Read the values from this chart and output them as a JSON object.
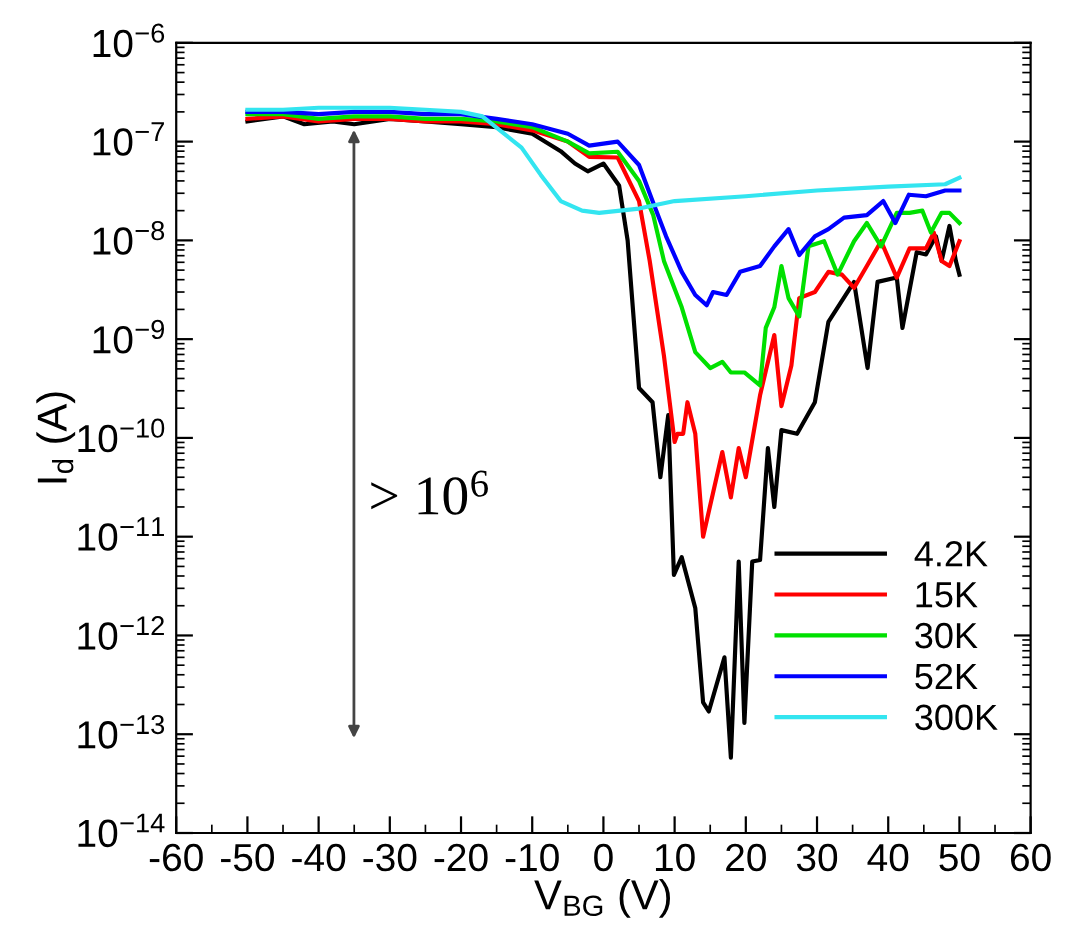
{
  "chart_data": {
    "type": "line",
    "xlabel": "V$_{BG}$ (V)",
    "ylabel": "I$_{d}$ (A)",
    "log": "y",
    "xlim": [
      -60,
      60
    ],
    "xticks": [
      -60,
      -50,
      -40,
      -30,
      -20,
      -10,
      0,
      10,
      20,
      30,
      40,
      50,
      60
    ],
    "ylim": [
      1e-14,
      1e-06
    ],
    "yticks": [
      {
        "value": 1e-14,
        "label": "10$^{−14}$"
      },
      {
        "value": 1e-13,
        "label": "10$^{−13}$"
      },
      {
        "value": 1e-12,
        "label": "10$^{−12}$"
      },
      {
        "value": 1e-11,
        "label": "10$^{−11}$"
      },
      {
        "value": 1e-10,
        "label": "10$^{−10}$"
      },
      {
        "value": 1e-09,
        "label": "10$^{−9}$"
      },
      {
        "value": 1e-08,
        "label": "10$^{−8}$"
      },
      {
        "value": 1e-07,
        "label": "10$^{−7}$"
      },
      {
        "value": 1e-06,
        "label": "10$^{−6}$"
      }
    ],
    "grid": false,
    "legend": "bottom right",
    "line_style": "solid",
    "marker": "none",
    "annotations": [
      "> 10$^{6}$"
    ],
    "series": [
      {
        "name": "4.2K",
        "color": "#000000",
        "x": [
          -50,
          -45,
          -42,
          -38,
          -35,
          -30,
          -25,
          -20,
          -15,
          -10,
          -6,
          -4,
          -2.2,
          0,
          2.2,
          3.4,
          5,
          6.9,
          8,
          9.1,
          9.9,
          11,
          12.9,
          14,
          14.8,
          17,
          17.9,
          19,
          19.8,
          20.9,
          22,
          23.1,
          24,
          25,
          27.2,
          29.7,
          31.6,
          35.2,
          37.1,
          38.5,
          41.2,
          42,
          44,
          45.3,
          46.7,
          47.5,
          48.6,
          49.5,
          50
        ],
        "values": [
          1.6e-07,
          1.8e-07,
          1.5e-07,
          1.6e-07,
          1.5e-07,
          1.7e-07,
          1.6e-07,
          1.5e-07,
          1.4e-07,
          1.2e-07,
          8e-08,
          6e-08,
          5e-08,
          6e-08,
          3.6e-08,
          1e-08,
          3.2e-10,
          2.3e-10,
          4e-11,
          1.7e-10,
          4.1e-12,
          6.2e-12,
          1.9e-12,
          2.1e-13,
          1.7e-13,
          6e-13,
          5.8e-14,
          5.6e-12,
          1.3e-13,
          5.6e-12,
          5.8e-12,
          7.9e-11,
          2e-11,
          1.2e-10,
          1.1e-10,
          2.3e-10,
          1.5e-09,
          3.8e-09,
          5.1e-10,
          3.8e-09,
          4.2e-09,
          1.3e-09,
          7.6e-09,
          7.2e-09,
          1.1e-08,
          6.2e-09,
          1.4e-08,
          6.2e-09,
          4.5e-09
        ]
      },
      {
        "name": "15K",
        "color": "#ff0000",
        "x": [
          -50,
          -45,
          -40,
          -35,
          -30,
          -25,
          -20,
          -15,
          -10,
          -5,
          -2,
          2,
          5,
          6.5,
          8.5,
          10,
          10.4,
          11.2,
          11.8,
          12.9,
          14,
          16.7,
          17.9,
          19,
          20,
          22,
          24,
          25,
          26.4,
          27.5,
          29.7,
          31.6,
          33.5,
          35.2,
          37,
          39,
          41.2,
          43,
          45.3,
          46.4,
          47.5,
          48.6,
          50
        ],
        "values": [
          1.7e-07,
          1.8e-07,
          1.6e-07,
          1.7e-07,
          1.7e-07,
          1.6e-07,
          1.6e-07,
          1.5e-07,
          1.3e-07,
          1e-07,
          7e-08,
          6.9e-08,
          2.5e-08,
          6.2e-09,
          6.8e-10,
          9.1e-11,
          1.1e-10,
          1.1e-10,
          2.3e-10,
          1.1e-10,
          1e-11,
          7.2e-11,
          2.5e-11,
          7.9e-11,
          4e-11,
          2.7e-10,
          1.1e-09,
          2.1e-10,
          5.4e-10,
          2.6e-09,
          3e-09,
          4.8e-09,
          4.5e-09,
          3.3e-09,
          5.5e-09,
          9.8e-09,
          4.2e-09,
          8.3e-09,
          8.3e-09,
          1.2e-08,
          6.2e-09,
          5.5e-09,
          9.8e-09
        ]
      },
      {
        "name": "30K",
        "color": "#00e000",
        "x": [
          -50,
          -45,
          -40,
          -35,
          -30,
          -25,
          -20,
          -15,
          -10,
          -5,
          -2,
          2,
          5,
          7,
          8.5,
          11,
          12.9,
          15,
          16.7,
          17.9,
          19.8,
          22,
          22.8,
          24,
          25,
          26,
          27.5,
          28.8,
          31,
          32.9,
          35.2,
          37,
          39,
          41.2,
          43,
          44.8,
          46,
          47.5,
          48.6,
          50
        ],
        "values": [
          1.9e-07,
          1.9e-07,
          1.7e-07,
          1.8e-07,
          1.8e-07,
          1.7e-07,
          1.7e-07,
          1.6e-07,
          1.4e-07,
          1e-07,
          7.6e-08,
          7.9e-08,
          4e-08,
          1.8e-08,
          6.2e-09,
          2.1e-09,
          7.4e-10,
          5.1e-10,
          5.9e-10,
          4.6e-10,
          4.6e-10,
          3.4e-10,
          1.3e-09,
          2.1e-09,
          5.5e-09,
          2.6e-09,
          1.7e-09,
          8.7e-09,
          9.8e-09,
          4.5e-09,
          9.8e-09,
          1.5e-08,
          8.7e-09,
          1.9e-08,
          1.9e-08,
          2e-08,
          1.2e-08,
          1.9e-08,
          1.9e-08,
          1.5e-08
        ]
      },
      {
        "name": "52K",
        "color": "#0000ff",
        "x": [
          -50,
          -45,
          -40,
          -35,
          -30,
          -25,
          -20,
          -15,
          -10,
          -5,
          -2,
          2,
          5,
          6.9,
          8.8,
          11,
          12.9,
          14.5,
          15.4,
          17.3,
          19.2,
          22,
          24,
          26,
          27.5,
          29.7,
          31.6,
          33.8,
          37,
          39.3,
          41,
          42.9,
          45.3,
          48,
          50
        ],
        "values": [
          2e-07,
          2e-07,
          1.9e-07,
          2e-07,
          2e-07,
          1.9e-07,
          1.9e-07,
          1.7e-07,
          1.5e-07,
          1.2e-07,
          9.1e-08,
          1e-07,
          5.8e-08,
          2.5e-08,
          1.1e-08,
          4.8e-09,
          2.8e-09,
          2.2e-09,
          3e-09,
          2.8e-09,
          4.8e-09,
          5.5e-09,
          8.7e-09,
          1.3e-08,
          7.1e-09,
          1.1e-08,
          1.3e-08,
          1.7e-08,
          1.8e-08,
          2.5e-08,
          1.5e-08,
          2.9e-08,
          2.8e-08,
          3.2e-08,
          3.2e-08
        ]
      },
      {
        "name": "300K",
        "color": "#33e5f0",
        "x": [
          -50,
          -45,
          -40,
          -35,
          -30,
          -25,
          -20,
          -17,
          -11.5,
          -8.8,
          -6,
          -3,
          -0.6,
          5,
          10,
          20,
          30,
          40,
          48,
          50
        ],
        "values": [
          2.1e-07,
          2.1e-07,
          2.2e-07,
          2.2e-07,
          2.2e-07,
          2.1e-07,
          2e-07,
          1.8e-07,
          8.7e-08,
          4.6e-08,
          2.5e-08,
          2e-08,
          1.9e-08,
          2.1e-08,
          2.5e-08,
          2.8e-08,
          3.2e-08,
          3.5e-08,
          3.7e-08,
          4.3e-08
        ]
      }
    ]
  }
}
